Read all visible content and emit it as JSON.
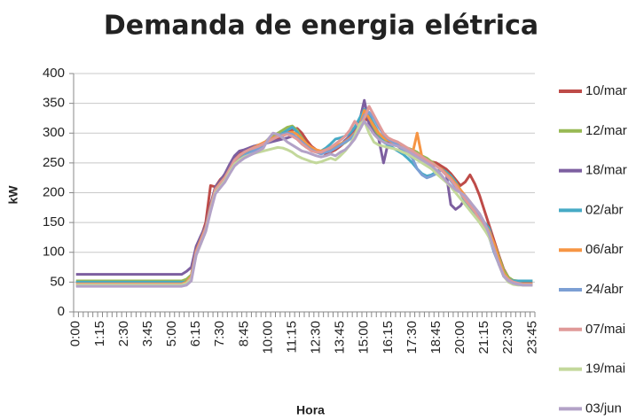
{
  "chart_data": {
    "type": "line",
    "title": "Demanda de energia elétrica",
    "x_label": "Hora",
    "y_label": "kW",
    "categories": [
      "0:00",
      null,
      null,
      null,
      null,
      "1:15",
      null,
      null,
      null,
      null,
      "2:30",
      null,
      null,
      null,
      null,
      "3:45",
      null,
      null,
      null,
      null,
      "5:00",
      null,
      null,
      null,
      null,
      "6:15",
      null,
      null,
      null,
      null,
      "7:30",
      null,
      null,
      null,
      null,
      "8:45",
      null,
      null,
      null,
      null,
      "10:00",
      null,
      null,
      null,
      null,
      "11:15",
      null,
      null,
      null,
      null,
      "12:30",
      null,
      null,
      null,
      null,
      "13:45",
      null,
      null,
      null,
      null,
      "15:00",
      null,
      null,
      null,
      null,
      "16:15",
      null,
      null,
      null,
      null,
      "17:30",
      null,
      null,
      null,
      null,
      "18:45",
      null,
      null,
      null,
      null,
      "20:00",
      null,
      null,
      null,
      null,
      "21:15",
      null,
      null,
      null,
      null,
      "22:30",
      null,
      null,
      null,
      null,
      "23:45"
    ],
    "ylim": [
      0,
      400
    ],
    "yticks": [
      0,
      50,
      100,
      150,
      200,
      250,
      300,
      350,
      400
    ],
    "grid": true,
    "legend": "right",
    "series": [
      {
        "name": "10/mar",
        "color": "#be4b48",
        "values": [
          48,
          48,
          48,
          48,
          48,
          48,
          48,
          48,
          48,
          48,
          48,
          48,
          48,
          48,
          48,
          48,
          48,
          48,
          48,
          48,
          48,
          48,
          48,
          52,
          62,
          105,
          125,
          150,
          212,
          210,
          222,
          230,
          245,
          258,
          265,
          270,
          275,
          278,
          280,
          283,
          285,
          288,
          290,
          295,
          300,
          305,
          308,
          300,
          288,
          278,
          272,
          268,
          265,
          268,
          272,
          278,
          285,
          292,
          300,
          315,
          325,
          320,
          310,
          300,
          292,
          288,
          285,
          282,
          278,
          272,
          268,
          262,
          258,
          255,
          252,
          250,
          245,
          240,
          232,
          222,
          212,
          218,
          230,
          215,
          195,
          170,
          145,
          120,
          95,
          72,
          58,
          52,
          50,
          48,
          48,
          48
        ]
      },
      {
        "name": "12/mar",
        "color": "#98b954",
        "values": [
          52,
          52,
          52,
          52,
          52,
          52,
          52,
          52,
          52,
          52,
          52,
          52,
          52,
          52,
          52,
          52,
          52,
          52,
          52,
          52,
          52,
          52,
          52,
          55,
          62,
          100,
          118,
          140,
          178,
          208,
          218,
          228,
          242,
          255,
          262,
          266,
          270,
          274,
          278,
          282,
          290,
          296,
          300,
          305,
          310,
          312,
          305,
          292,
          282,
          275,
          270,
          268,
          270,
          272,
          275,
          280,
          284,
          290,
          300,
          312,
          335,
          322,
          305,
          295,
          288,
          285,
          282,
          280,
          278,
          275,
          272,
          268,
          262,
          258,
          252,
          245,
          240,
          235,
          228,
          218,
          205,
          190,
          178,
          165,
          150,
          138,
          130,
          115,
          92,
          70,
          58,
          53,
          52,
          52,
          52,
          52
        ]
      },
      {
        "name": "18/mar",
        "color": "#7d5fa0",
        "values": [
          63,
          63,
          63,
          63,
          63,
          63,
          63,
          63,
          63,
          63,
          63,
          63,
          63,
          63,
          63,
          63,
          63,
          63,
          63,
          63,
          63,
          63,
          63,
          68,
          75,
          110,
          128,
          145,
          180,
          210,
          220,
          232,
          248,
          262,
          270,
          272,
          275,
          278,
          280,
          282,
          284,
          286,
          288,
          290,
          292,
          295,
          290,
          282,
          276,
          272,
          270,
          268,
          270,
          272,
          276,
          280,
          288,
          295,
          305,
          320,
          355,
          315,
          300,
          290,
          250,
          285,
          282,
          278,
          272,
          268,
          262,
          258,
          255,
          252,
          248,
          245,
          240,
          235,
          180,
          172,
          178,
          190,
          175,
          165,
          155,
          140,
          125,
          105,
          85,
          60,
          52,
          48,
          46,
          45,
          45,
          45
        ]
      },
      {
        "name": "02/abr",
        "color": "#46aac5",
        "values": [
          50,
          50,
          50,
          50,
          50,
          50,
          50,
          50,
          50,
          50,
          50,
          50,
          50,
          50,
          50,
          50,
          50,
          50,
          50,
          50,
          50,
          50,
          50,
          50,
          58,
          98,
          118,
          138,
          172,
          200,
          212,
          222,
          238,
          252,
          260,
          265,
          270,
          275,
          278,
          282,
          288,
          290,
          295,
          300,
          305,
          310,
          302,
          288,
          278,
          272,
          268,
          270,
          275,
          282,
          290,
          292,
          295,
          300,
          310,
          325,
          340,
          330,
          315,
          300,
          285,
          280,
          275,
          270,
          265,
          258,
          250,
          240,
          232,
          228,
          230,
          235,
          240,
          235,
          228,
          218,
          200,
          185,
          175,
          165,
          158,
          150,
          140,
          110,
          80,
          62,
          55,
          52,
          52,
          52,
          52,
          52
        ]
      },
      {
        "name": "06/abr",
        "color": "#f69544",
        "values": [
          47,
          47,
          47,
          47,
          47,
          47,
          47,
          47,
          47,
          47,
          47,
          47,
          47,
          47,
          47,
          47,
          47,
          47,
          47,
          47,
          47,
          47,
          47,
          50,
          60,
          102,
          122,
          142,
          176,
          206,
          216,
          226,
          240,
          254,
          262,
          268,
          272,
          276,
          280,
          284,
          288,
          292,
          296,
          298,
          300,
          302,
          298,
          290,
          282,
          276,
          272,
          270,
          272,
          274,
          278,
          282,
          286,
          292,
          300,
          312,
          338,
          325,
          312,
          300,
          292,
          288,
          284,
          280,
          275,
          270,
          265,
          300,
          260,
          255,
          250,
          245,
          240,
          232,
          225,
          215,
          205,
          195,
          185,
          172,
          160,
          148,
          135,
          115,
          88,
          65,
          55,
          50,
          48,
          47,
          47,
          47
        ]
      },
      {
        "name": "24/abr",
        "color": "#7c9fd4",
        "values": [
          44,
          44,
          44,
          44,
          44,
          44,
          44,
          44,
          44,
          44,
          44,
          44,
          44,
          44,
          44,
          44,
          44,
          44,
          44,
          44,
          44,
          44,
          44,
          46,
          55,
          98,
          118,
          138,
          172,
          200,
          210,
          220,
          235,
          248,
          256,
          262,
          266,
          270,
          275,
          280,
          285,
          290,
          295,
          298,
          300,
          298,
          292,
          285,
          278,
          272,
          268,
          265,
          268,
          270,
          275,
          280,
          285,
          290,
          298,
          310,
          330,
          335,
          325,
          310,
          298,
          290,
          285,
          280,
          272,
          265,
          258,
          240,
          230,
          225,
          228,
          232,
          238,
          230,
          220,
          210,
          200,
          190,
          180,
          170,
          160,
          145,
          125,
          100,
          80,
          60,
          52,
          50,
          48,
          46,
          46,
          46
        ]
      },
      {
        "name": "07/mai",
        "color": "#e09a99",
        "values": [
          46,
          46,
          46,
          46,
          46,
          46,
          46,
          46,
          46,
          46,
          46,
          46,
          46,
          46,
          46,
          46,
          46,
          46,
          46,
          46,
          46,
          46,
          46,
          48,
          58,
          100,
          120,
          140,
          175,
          205,
          215,
          225,
          240,
          255,
          263,
          268,
          272,
          275,
          278,
          282,
          286,
          290,
          294,
          296,
          298,
          295,
          290,
          282,
          276,
          270,
          268,
          268,
          272,
          276,
          282,
          288,
          295,
          305,
          320,
          310,
          325,
          345,
          330,
          315,
          300,
          292,
          288,
          285,
          280,
          275,
          270,
          265,
          260,
          255,
          250,
          245,
          238,
          230,
          222,
          212,
          200,
          188,
          178,
          168,
          155,
          140,
          125,
          105,
          82,
          62,
          54,
          50,
          48,
          46,
          46,
          46
        ]
      },
      {
        "name": "19/mai",
        "color": "#c3d89b",
        "values": [
          45,
          45,
          45,
          45,
          45,
          45,
          45,
          45,
          45,
          45,
          45,
          45,
          45,
          45,
          45,
          45,
          45,
          45,
          45,
          45,
          45,
          45,
          45,
          48,
          55,
          95,
          115,
          135,
          170,
          200,
          210,
          220,
          235,
          248,
          255,
          260,
          263,
          266,
          268,
          270,
          272,
          274,
          276,
          275,
          272,
          268,
          262,
          258,
          255,
          252,
          250,
          252,
          255,
          258,
          255,
          262,
          270,
          280,
          295,
          315,
          320,
          300,
          285,
          280,
          278,
          276,
          274,
          272,
          268,
          265,
          260,
          255,
          250,
          245,
          240,
          232,
          225,
          218,
          210,
          200,
          190,
          180,
          170,
          160,
          150,
          138,
          125,
          105,
          80,
          60,
          50,
          46,
          45,
          45,
          45,
          45
        ]
      },
      {
        "name": "03/jun",
        "color": "#b3a2c7",
        "values": [
          43,
          43,
          43,
          43,
          43,
          43,
          43,
          43,
          43,
          43,
          43,
          43,
          43,
          43,
          43,
          43,
          43,
          43,
          43,
          43,
          43,
          43,
          43,
          45,
          52,
          95,
          115,
          135,
          168,
          198,
          208,
          218,
          232,
          245,
          252,
          258,
          262,
          266,
          270,
          275,
          290,
          300,
          298,
          292,
          285,
          280,
          275,
          270,
          268,
          265,
          262,
          260,
          262,
          265,
          262,
          268,
          272,
          280,
          290,
          305,
          320,
          310,
          298,
          290,
          285,
          282,
          280,
          278,
          275,
          270,
          265,
          260,
          255,
          250,
          245,
          238,
          230,
          220,
          212,
          205,
          200,
          195,
          185,
          175,
          165,
          150,
          130,
          105,
          80,
          60,
          52,
          48,
          46,
          45,
          45,
          45
        ]
      }
    ]
  }
}
